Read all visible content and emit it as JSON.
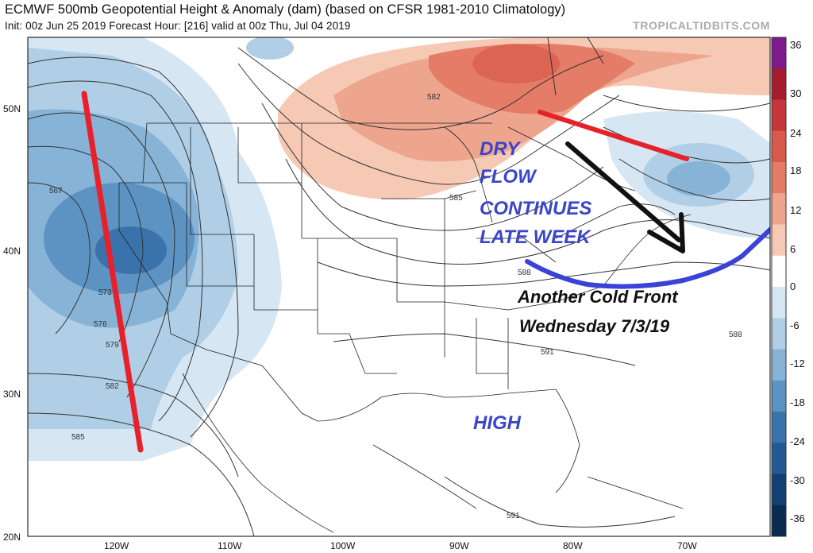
{
  "header": {
    "title": "ECMWF 500mb Geopotential Height & Anomaly (dam) (based on CFSR 1981-2010 Climatology)",
    "subtitle": "Init: 00z Jun 25 2019   Forecast Hour: [216]   valid at 00z Thu, Jul 04 2019",
    "brand": "TROPICALTIDBITS.COM"
  },
  "axes": {
    "lat_labels": [
      "50N",
      "40N",
      "30N",
      "20N"
    ],
    "lon_labels": [
      "120W",
      "110W",
      "100W",
      "90W",
      "80W",
      "70W"
    ]
  },
  "contour_labels": [
    "567",
    "573",
    "576",
    "579",
    "582",
    "585",
    "582",
    "585",
    "588",
    "588",
    "591",
    "591"
  ],
  "colorbar": {
    "labels": [
      "36",
      "30",
      "24",
      "18",
      "12",
      "6",
      "0",
      "-6",
      "-12",
      "-18",
      "-24",
      "-30",
      "-36"
    ],
    "colors": [
      "#7e1a8c",
      "#a31d2e",
      "#c4363a",
      "#d85a4c",
      "#e47c68",
      "#eea58e",
      "#f6c9b5",
      "#ffffff",
      "#d6e6f3",
      "#b0cfe6",
      "#86b3d6",
      "#5c93c3",
      "#3a73ab",
      "#245993",
      "#143f72",
      "#0b2a52"
    ]
  },
  "annotations": {
    "dry_flow_lines": [
      "DRY",
      "FLOW",
      "CONTINUES",
      "LATE WEEK"
    ],
    "cold_front_lines": [
      "Another Cold Front",
      "Wednesday 7/3/19"
    ],
    "high": "HIGH"
  },
  "colors": {
    "red_line": "#e8202a",
    "blue_front": "#3b43d6",
    "arrow": "#111111",
    "neg_anomaly": "#7fb0d8",
    "pos_anomaly": "#e8866a"
  }
}
